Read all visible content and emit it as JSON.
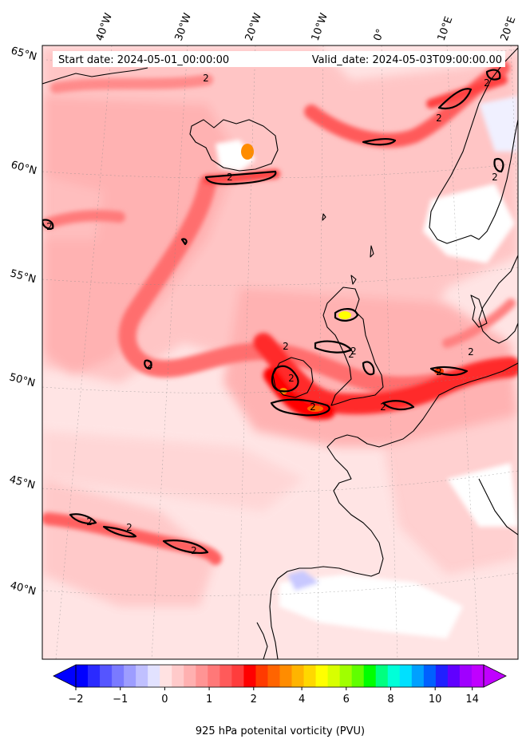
{
  "header": {
    "start_date": "Start date: 2024-05-01_00:00:00",
    "valid_date": "Valid_date: 2024-05-03T09:00:00.00"
  },
  "map": {
    "lon_labels": [
      "40°W",
      "30°W",
      "20°W",
      "10°W",
      "0°",
      "10°E",
      "20°E"
    ],
    "lat_labels": [
      "65°N",
      "60°N",
      "55°N",
      "50°N",
      "45°N",
      "40°N"
    ],
    "contour_level_label": "2",
    "contour_labels": [
      "2",
      "2",
      "2",
      "2",
      "2",
      "2",
      "2",
      "2",
      "2",
      "2",
      "2",
      "2",
      "2",
      "2",
      "2",
      "2",
      "2",
      "2"
    ]
  },
  "colorbar": {
    "label": "925 hPa potenital vorticity (PVU)",
    "ticks": [
      "−2",
      "−1",
      "0",
      "1",
      "2",
      "4",
      "6",
      "8",
      "10",
      "14"
    ],
    "colors": [
      "#0000ff",
      "#2a2aff",
      "#5555ff",
      "#7a7aff",
      "#9d9dff",
      "#c0c0ff",
      "#e2e2ff",
      "#ffe2e2",
      "#ffcaca",
      "#ffb0b0",
      "#ff9494",
      "#ff7878",
      "#ff5a5a",
      "#ff3c3c",
      "#ff0000",
      "#ff3a00",
      "#ff6400",
      "#ff8c00",
      "#ffb400",
      "#ffd800",
      "#ffff00",
      "#d8ff00",
      "#a0ff00",
      "#60ff00",
      "#00ff00",
      "#00ff80",
      "#00ffd8",
      "#00e0ff",
      "#00a0ff",
      "#0060ff",
      "#2020ff",
      "#6000ff",
      "#a000ff",
      "#c000ff"
    ],
    "under_color": "#0000ff",
    "over_color": "#c000ff"
  }
}
